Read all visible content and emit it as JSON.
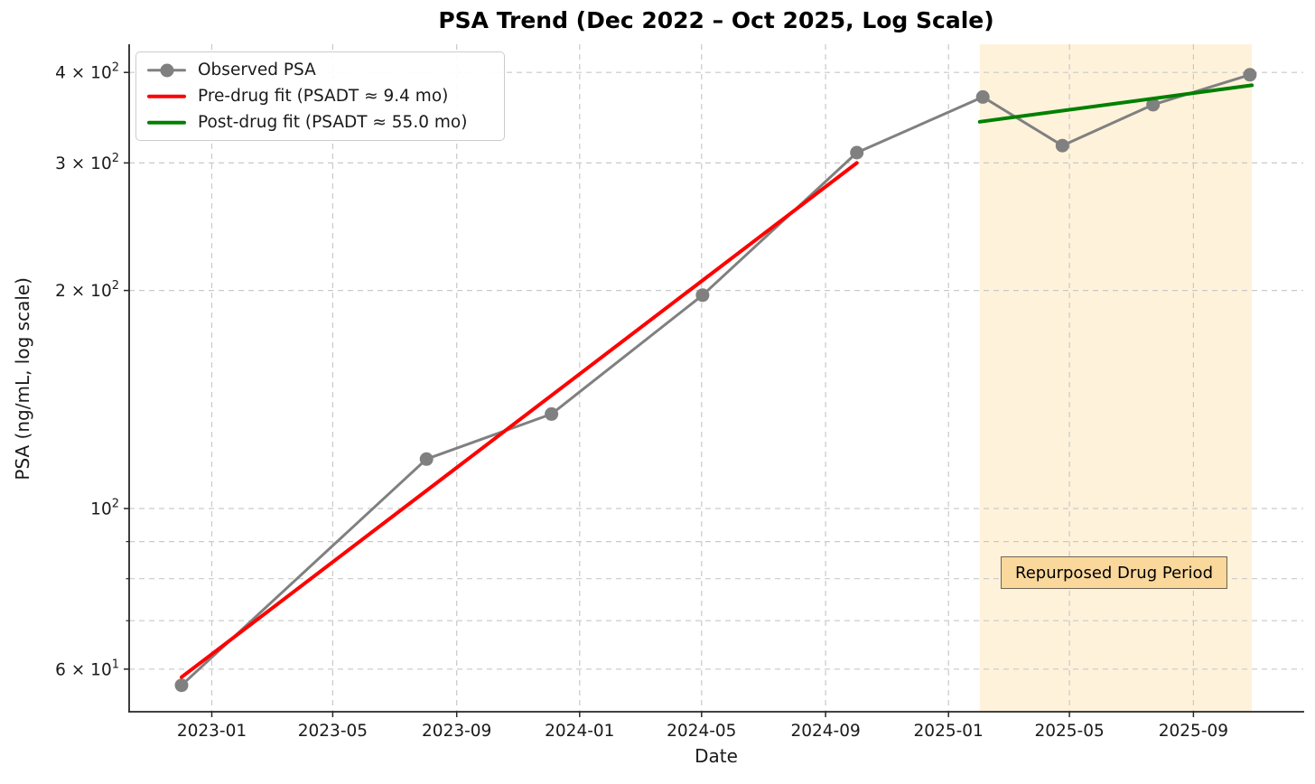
{
  "figure": {
    "background": "#ffffff",
    "text_color": "#1a1a1a",
    "spine_color": "#262626"
  },
  "chart_data": {
    "type": "line",
    "title": "PSA Trend (Dec 2022 – Oct 2025, Log Scale)",
    "xlabel": "Date",
    "ylabel": "PSA (ng/mL, log scale)",
    "y_scale": "log",
    "x_domain": [
      "2022-10-11",
      "2025-12-19"
    ],
    "y_domain": [
      52.4,
      437.5
    ],
    "grid": {
      "on": true,
      "style": "dashed",
      "color": "#c9c9c9",
      "which": "both"
    },
    "x_ticks": [
      {
        "date": "2023-01-01",
        "label": "2023-01"
      },
      {
        "date": "2023-05-01",
        "label": "2023-05"
      },
      {
        "date": "2023-09-01",
        "label": "2023-09"
      },
      {
        "date": "2024-01-01",
        "label": "2024-01"
      },
      {
        "date": "2024-05-01",
        "label": "2024-05"
      },
      {
        "date": "2024-09-01",
        "label": "2024-09"
      },
      {
        "date": "2025-01-01",
        "label": "2025-01"
      },
      {
        "date": "2025-05-01",
        "label": "2025-05"
      },
      {
        "date": "2025-09-01",
        "label": "2025-09"
      }
    ],
    "y_ticks": [
      {
        "value": 400,
        "base": "4 × 10",
        "exp": "2"
      },
      {
        "value": 300,
        "base": "3 × 10",
        "exp": "2"
      },
      {
        "value": 200,
        "base": "2 × 10",
        "exp": "2"
      },
      {
        "value": 100,
        "base": "10",
        "exp": "2"
      },
      {
        "value": 60,
        "base": "6 × 10",
        "exp": "1"
      }
    ],
    "y_minor_gridlines": [
      90,
      80,
      70
    ],
    "series": [
      {
        "id": "observed",
        "name": "Observed PSA",
        "type": "line+markers",
        "color": "#808080",
        "line_width": 3,
        "marker": "circle",
        "marker_size": 15,
        "points": [
          [
            "2022-12-02",
            57
          ],
          [
            "2023-08-02",
            117
          ],
          [
            "2023-12-04",
            135
          ],
          [
            "2024-05-02",
            197
          ],
          [
            "2024-10-02",
            310
          ],
          [
            "2025-02-04",
            370
          ],
          [
            "2025-04-24",
            317
          ],
          [
            "2025-07-23",
            361
          ],
          [
            "2025-10-27",
            397
          ]
        ]
      },
      {
        "id": "pre-drug-fit",
        "name": "Pre-drug fit (PSADT ≈ 9.4 mo)",
        "type": "line",
        "color": "#ff0000",
        "line_width": 4,
        "psadt_months": 9.4,
        "points": [
          [
            "2022-12-02",
            58.5
          ],
          [
            "2024-10-02",
            300
          ]
        ]
      },
      {
        "id": "post-drug-fit",
        "name": "Post-drug fit (PSADT ≈ 55.0 mo)",
        "type": "line",
        "color": "#008000",
        "line_width": 4,
        "psadt_months": 55.0,
        "points": [
          [
            "2025-02-01",
            342
          ],
          [
            "2025-10-29",
            384
          ]
        ]
      }
    ],
    "region": {
      "label": "Repurposed Drug Period",
      "start": "2025-02-01",
      "end": "2025-10-29",
      "fill": "#ffa500",
      "fill_opacity": 0.14,
      "label_box": {
        "fill": "#fad89b",
        "border": "#6f6452",
        "text_color": "#000000"
      }
    },
    "legend": {
      "position": "upper left",
      "items": [
        "Observed PSA",
        "Pre-drug fit (PSADT ≈ 9.4 mo)",
        "Post-drug fit (PSADT ≈ 55.0 mo)"
      ]
    }
  }
}
